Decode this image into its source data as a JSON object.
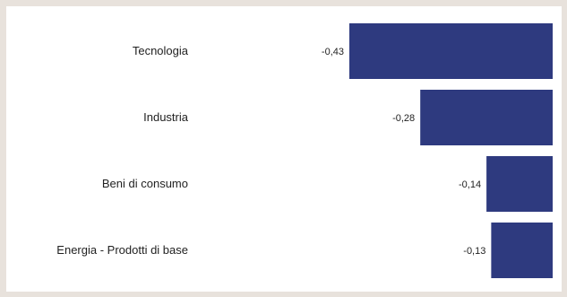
{
  "chart_data": {
    "type": "bar",
    "orientation": "horizontal",
    "categories": [
      "Tecnologia",
      "Industria",
      "Beni di consumo",
      "Energia - Prodotti di base"
    ],
    "values": [
      -0.43,
      -0.28,
      -0.14,
      -0.13
    ],
    "value_labels": [
      "-0,43",
      "-0,28",
      "-0,14",
      "-0,13"
    ],
    "xlim": [
      -0.43,
      0
    ],
    "grid": false,
    "legend": "none",
    "bar_color": "#2e3a7f",
    "background": "#ffffff",
    "frame_color": "#e8e2dc"
  }
}
